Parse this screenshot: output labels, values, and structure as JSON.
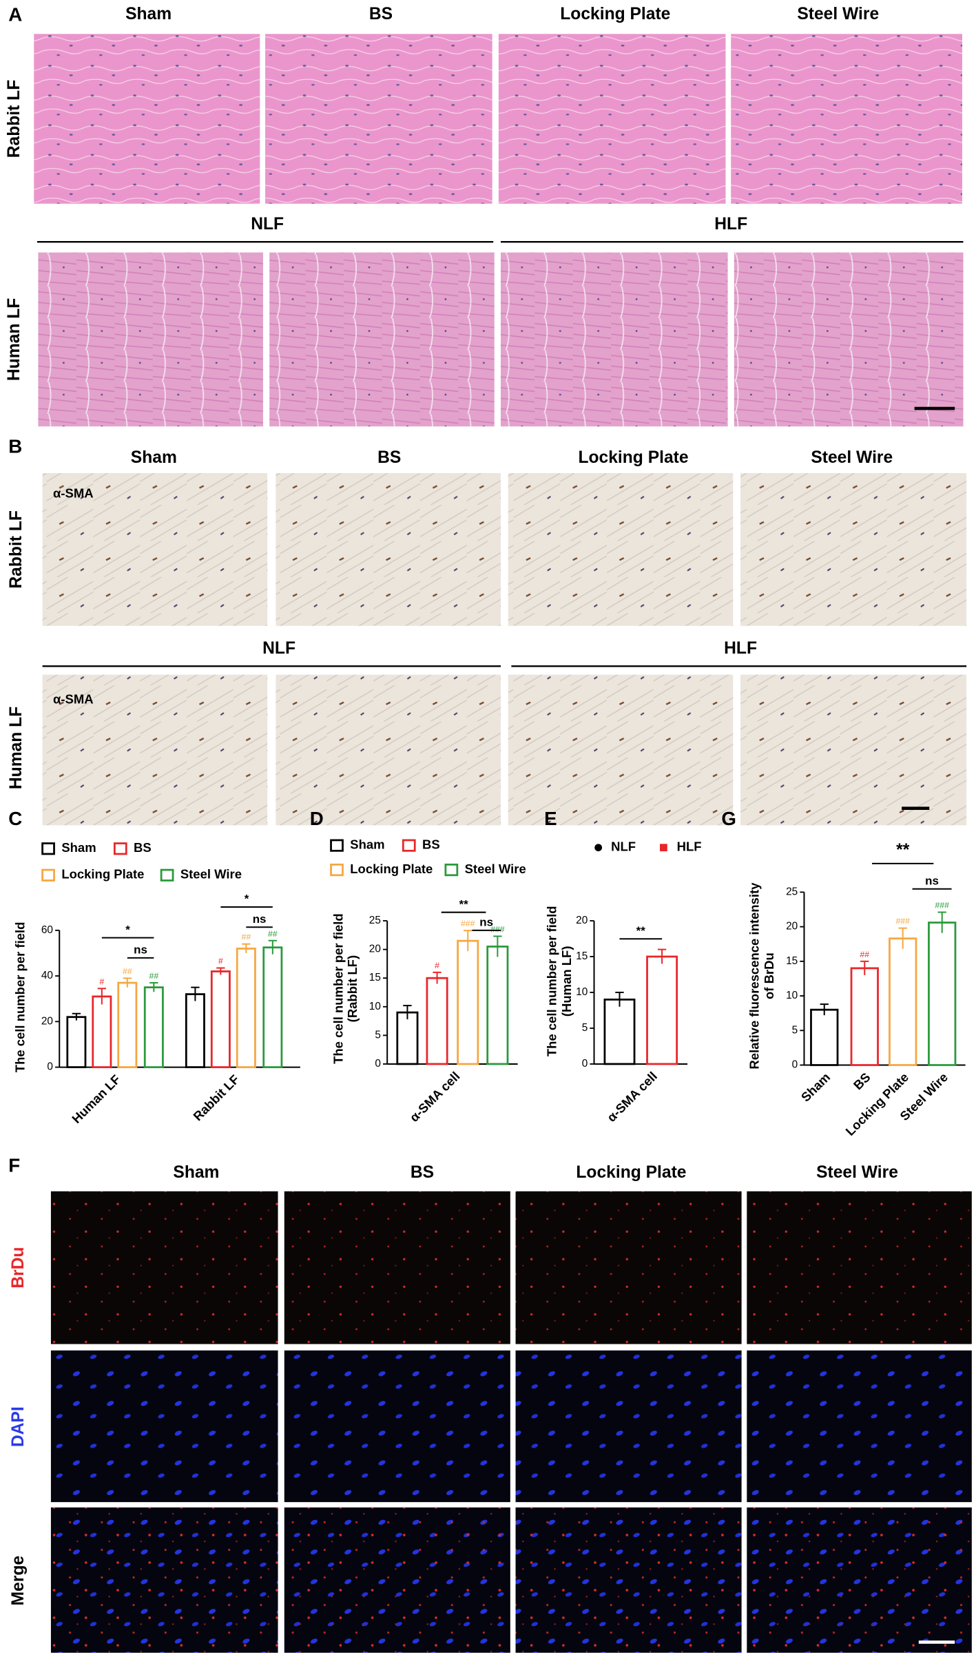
{
  "panels": {
    "A": {
      "label": "A",
      "columns": [
        "Sham",
        "BS",
        "Locking Plate",
        "Steel Wire"
      ],
      "rows": [
        "Rabbit LF",
        "Human LF"
      ],
      "groups": [
        "NLF",
        "HLF"
      ]
    },
    "B": {
      "label": "B",
      "columns": [
        "Sham",
        "BS",
        "Locking Plate",
        "Steel Wire"
      ],
      "rows": [
        "Rabbit LF",
        "Human LF"
      ],
      "groups": [
        "NLF",
        "HLF"
      ],
      "stain": "α-SMA"
    },
    "F": {
      "label": "F",
      "columns": [
        "Sham",
        "BS",
        "Locking Plate",
        "Steel Wire"
      ],
      "rows": [
        "BrDu",
        "DAPI",
        "Merge"
      ]
    }
  },
  "chart_data": [
    {
      "panel": "C",
      "type": "bar",
      "categories": [
        "Human LF",
        "Rabbit LF"
      ],
      "ylabel": [
        "The cell number per field"
      ],
      "ylim": [
        0,
        60
      ],
      "yticks": [
        0,
        20,
        40,
        60
      ],
      "series": [
        {
          "name": "Sham",
          "color": "#000000",
          "values": [
            22,
            32
          ],
          "errors": [
            1.5,
            3
          ]
        },
        {
          "name": "BS",
          "color": "#e8262a",
          "values": [
            31,
            42
          ],
          "errors": [
            3.5,
            1.5
          ],
          "labels": [
            "#",
            "#"
          ]
        },
        {
          "name": "Locking Plate",
          "color": "#f5a742",
          "values": [
            37,
            52
          ],
          "errors": [
            2,
            2
          ],
          "labels": [
            "##",
            "##"
          ]
        },
        {
          "name": "Steel Wire",
          "color": "#2a9a3a",
          "values": [
            35,
            52.5
          ],
          "errors": [
            2,
            3
          ],
          "labels": [
            "##",
            "##"
          ]
        }
      ],
      "comparisons": [
        "*",
        "ns",
        "*",
        "ns"
      ]
    },
    {
      "panel": "D",
      "type": "bar",
      "categories": [
        "α-SMA cell"
      ],
      "ylabel": [
        "The cell number per field",
        "(Rabbit LF)"
      ],
      "ylim": [
        0,
        25
      ],
      "yticks": [
        0,
        5,
        10,
        15,
        20,
        25
      ],
      "series": [
        {
          "name": "Sham",
          "color": "#000000",
          "values": [
            9
          ],
          "errors": [
            1.2
          ]
        },
        {
          "name": "BS",
          "color": "#e8262a",
          "values": [
            15
          ],
          "errors": [
            1
          ],
          "labels": [
            "#"
          ]
        },
        {
          "name": "Locking Plate",
          "color": "#f5a742",
          "values": [
            21.5
          ],
          "errors": [
            1.8
          ],
          "labels": [
            "###"
          ]
        },
        {
          "name": "Steel Wire",
          "color": "#2a9a3a",
          "values": [
            20.5
          ],
          "errors": [
            1.8
          ],
          "labels": [
            "###"
          ]
        }
      ],
      "comparisons": [
        "**",
        "ns"
      ]
    },
    {
      "panel": "E",
      "type": "bar",
      "categories": [
        "α-SMA cell"
      ],
      "ylabel": [
        "The cell number per field",
        "(Human LF)"
      ],
      "ylim": [
        0,
        20
      ],
      "yticks": [
        0,
        5,
        10,
        15,
        20
      ],
      "series": [
        {
          "name": "NLF",
          "color": "#000000",
          "marker": "circle",
          "values": [
            9
          ],
          "errors": [
            1
          ]
        },
        {
          "name": "HLF",
          "color": "#e8262a",
          "marker": "square",
          "values": [
            15
          ],
          "errors": [
            1
          ]
        }
      ],
      "comparisons": [
        "**"
      ]
    },
    {
      "panel": "G",
      "type": "bar",
      "categories": [
        "Sham",
        "BS",
        "Locking Plate",
        "Steel Wire"
      ],
      "ylabel": [
        "Relative fluorescence intensity",
        "of BrDu"
      ],
      "ylim": [
        0,
        25
      ],
      "yticks": [
        0,
        5,
        10,
        15,
        20,
        25
      ],
      "values": [
        8,
        14,
        18.3,
        20.6
      ],
      "errors": [
        0.8,
        1,
        1.5,
        1.5
      ],
      "colors": [
        "#000000",
        "#e8262a",
        "#f5a742",
        "#2a9a3a"
      ],
      "labels": [
        null,
        "##",
        "###",
        "###"
      ],
      "comparisons": [
        "**",
        "ns"
      ]
    }
  ]
}
